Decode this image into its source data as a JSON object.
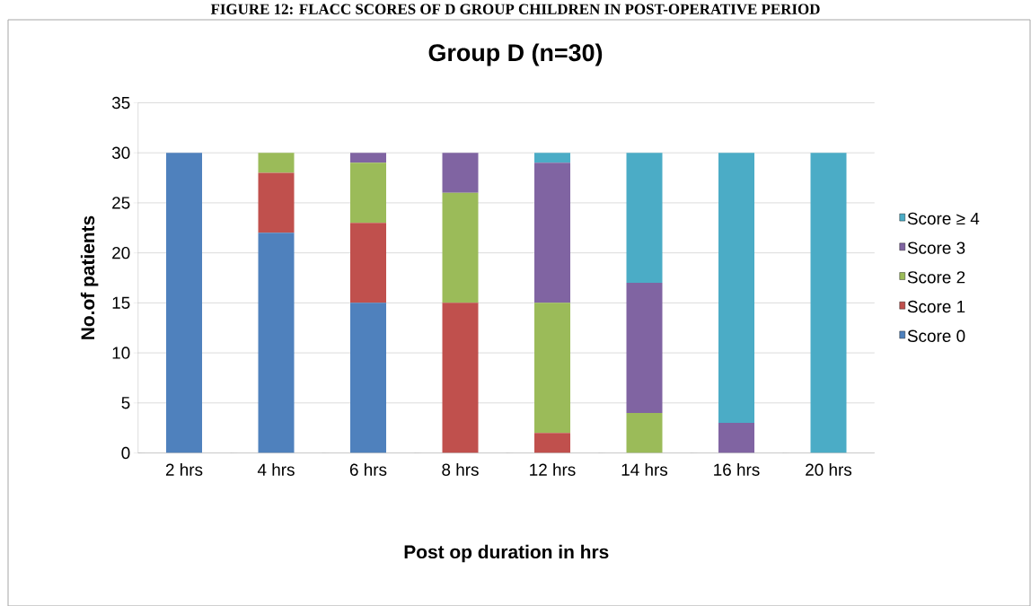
{
  "chart_data": {
    "type": "bar",
    "stacked": true,
    "title": "Group D (n=30)",
    "xlabel": "Post op duration in hrs",
    "ylabel": "No.of patients",
    "annotations": [
      "FIGURE 12: FLACC SCORES OF D GROUP CHILDREN IN POST-OPERATIVE PERIOD"
    ],
    "categories": [
      "2 hrs",
      "4 hrs",
      "6 hrs",
      "8 hrs",
      "12 hrs",
      "14 hrs",
      "16 hrs",
      "20 hrs"
    ],
    "series": [
      {
        "name": "Score 0",
        "color": "#4f81bd",
        "values": [
          30,
          22,
          15,
          0,
          0,
          0,
          0,
          0
        ]
      },
      {
        "name": "Score 1",
        "color": "#c0504d",
        "values": [
          0,
          6,
          8,
          15,
          2,
          0,
          0,
          0
        ]
      },
      {
        "name": "Score 2",
        "color": "#9bbb59",
        "values": [
          0,
          2,
          6,
          11,
          13,
          4,
          0,
          0
        ]
      },
      {
        "name": "Score 3",
        "color": "#8064a2",
        "values": [
          0,
          0,
          1,
          4,
          14,
          13,
          3,
          0
        ]
      },
      {
        "name": "Score ≥ 4",
        "color": "#4bacc6",
        "values": [
          0,
          0,
          0,
          0,
          1,
          13,
          27,
          30
        ]
      }
    ],
    "ylim": [
      0,
      35
    ],
    "yticks": [
      0,
      5,
      10,
      15,
      20,
      25,
      30,
      35
    ],
    "grid": "y",
    "legend": "right"
  }
}
